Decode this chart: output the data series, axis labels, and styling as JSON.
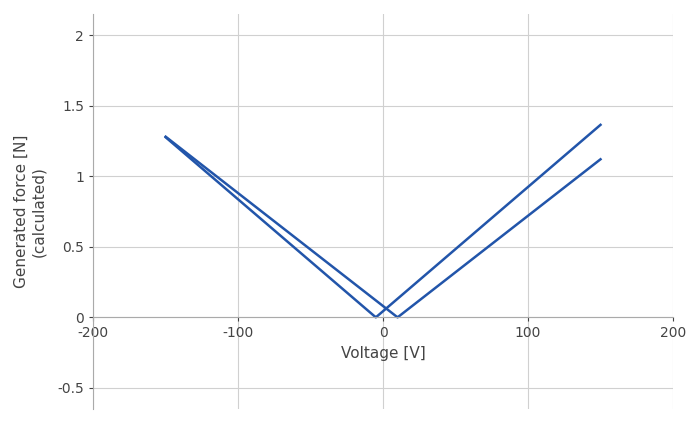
{
  "title": "",
  "xlabel": "Voltage [V]",
  "ylabel": "Generated force [N]\n(calculated)",
  "xlim": [
    -200,
    200
  ],
  "ylim": [
    -0.65,
    2.15
  ],
  "xticks": [
    -200,
    -100,
    0,
    100,
    200
  ],
  "yticks": [
    -0.5,
    0,
    0.5,
    1.0,
    1.5,
    2.0
  ],
  "line_color": "#2255aa",
  "line_width": 1.8,
  "grid_color": "#d0d0d0",
  "background_color": "#ffffff",
  "curve1_zero": -5,
  "curve2_zero": 10,
  "scale1": 0.0088,
  "scale2": 0.008,
  "v_start": -150,
  "v_end": 150
}
